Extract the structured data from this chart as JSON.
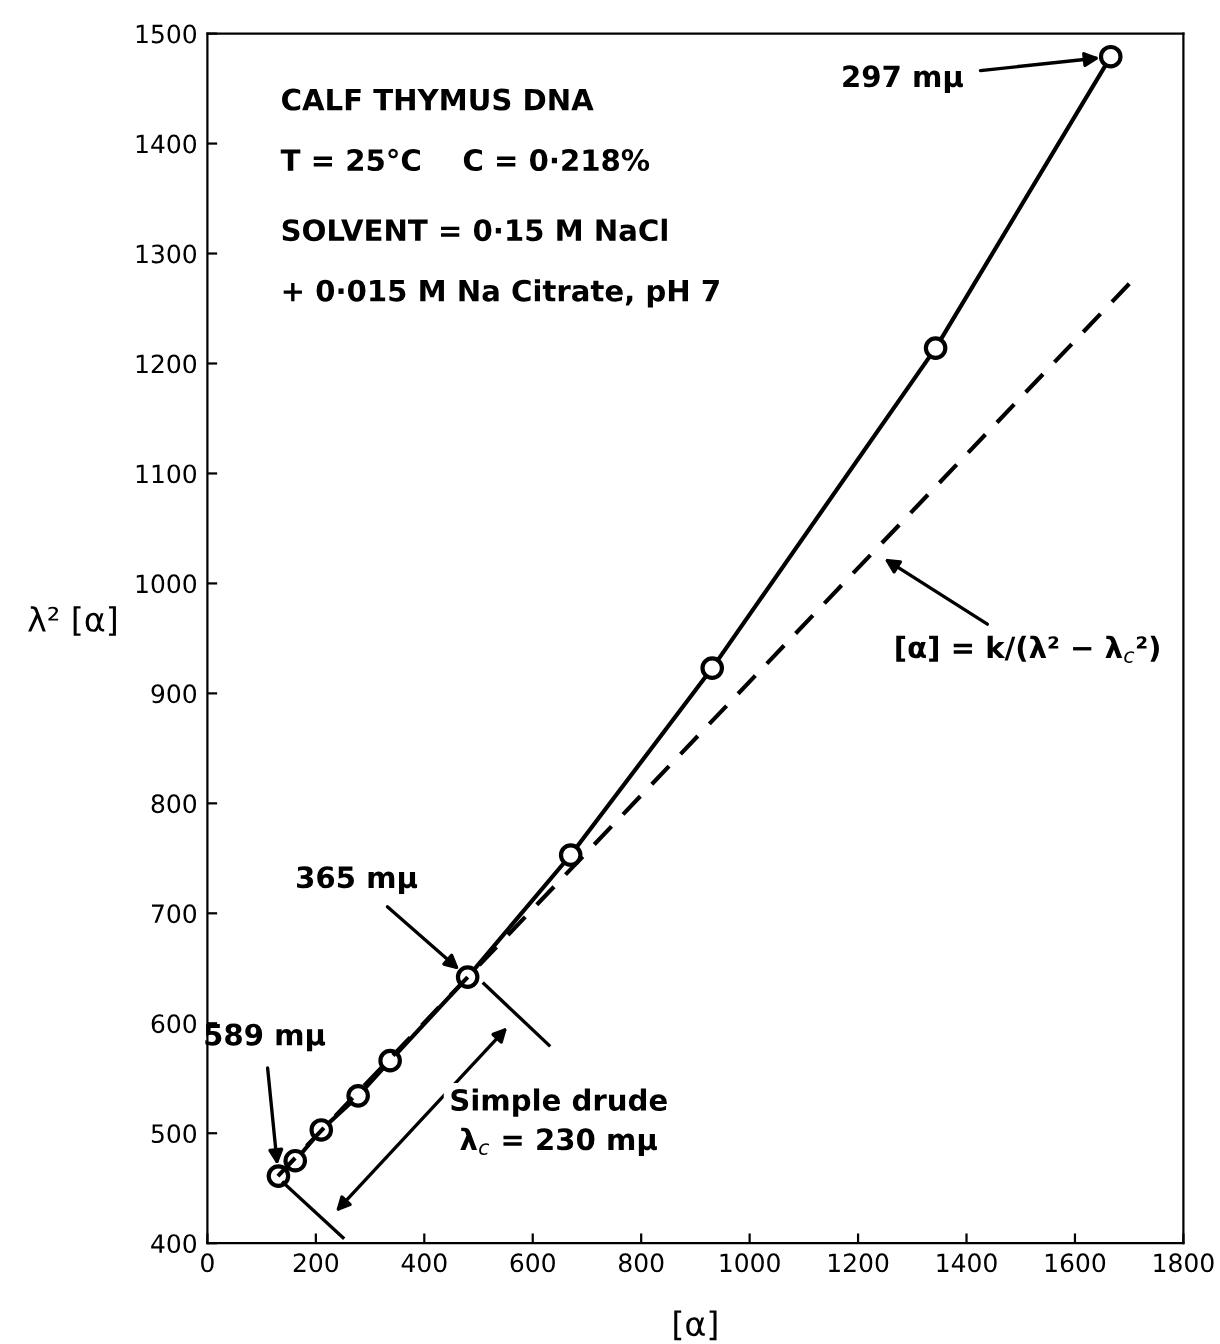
{
  "chart_data": {
    "type": "line",
    "xlabel": "[α]",
    "ylabel": "λ² [α]",
    "xlim": [
      0,
      1800
    ],
    "ylim": [
      400,
      1500
    ],
    "xticks": [
      0,
      200,
      400,
      600,
      800,
      1000,
      1200,
      1400,
      1600,
      1800
    ],
    "yticks": [
      400,
      500,
      600,
      700,
      800,
      900,
      1000,
      1100,
      1200,
      1300,
      1400,
      1500
    ],
    "grid": false,
    "legend": false,
    "series": [
      {
        "color": "#000000",
        "marker": "circle",
        "line_style": "solid",
        "x": [
          131,
          162,
          210,
          278,
          337,
          480,
          670,
          931,
          1343,
          1666
        ],
        "values": [
          461,
          475,
          503,
          534,
          566,
          642,
          753,
          923,
          1214,
          1479
        ]
      },
      {
        "color": "#000000",
        "marker": "none",
        "line_style": "dashed",
        "x": [
          130,
          1705
        ],
        "values": [
          461,
          1275
        ]
      }
    ],
    "annotations": [
      "CALF THYMUS DNA",
      "T = 25°C    C = 0·218%",
      "SOLVENT = 0·15 M NaCl",
      "+ 0·015 M Na Citrate, pH 7",
      {
        "text": "297 mμ",
        "x": 1666,
        "y": 1479
      },
      {
        "text": "365 mμ",
        "x": 480,
        "y": 642
      },
      {
        "text": "589 mμ",
        "x": 131,
        "y": 461
      },
      {
        "text": "[α] = k/(λ² − λ$_{c}$²)",
        "x": 1231,
        "y": 1028
      },
      "Simple drude\nλ$_{c}$ = 230 mμ"
    ]
  }
}
